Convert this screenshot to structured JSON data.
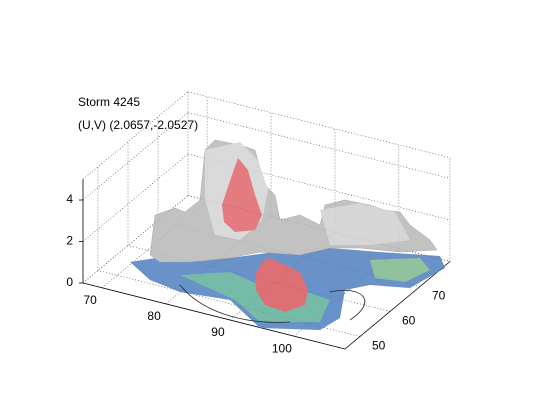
{
  "chart_data": {
    "type": "surface3d",
    "title": "Storm 4245",
    "subtitle": "(U,V) (2.0657,-2.0527)",
    "xlim": [
      67,
      108
    ],
    "xticks": [
      70,
      80,
      90,
      100
    ],
    "ylim": [
      45,
      80
    ],
    "yticks": [
      50,
      60,
      70
    ],
    "zlim": [
      0,
      5
    ],
    "zticks": [
      0,
      2,
      4
    ],
    "grid": true
  }
}
